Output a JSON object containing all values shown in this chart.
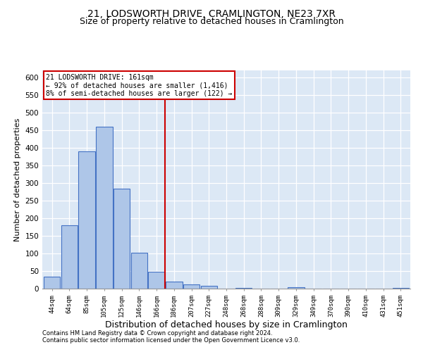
{
  "title1": "21, LODSWORTH DRIVE, CRAMLINGTON, NE23 7XR",
  "title2": "Size of property relative to detached houses in Cramlington",
  "xlabel": "Distribution of detached houses by size in Cramlington",
  "ylabel": "Number of detached properties",
  "footnote1": "Contains HM Land Registry data © Crown copyright and database right 2024.",
  "footnote2": "Contains public sector information licensed under the Open Government Licence v3.0.",
  "bar_labels": [
    "44sqm",
    "64sqm",
    "85sqm",
    "105sqm",
    "125sqm",
    "146sqm",
    "166sqm",
    "186sqm",
    "207sqm",
    "227sqm",
    "248sqm",
    "268sqm",
    "288sqm",
    "309sqm",
    "329sqm",
    "349sqm",
    "370sqm",
    "390sqm",
    "410sqm",
    "431sqm",
    "451sqm"
  ],
  "bar_values": [
    35,
    180,
    390,
    460,
    285,
    103,
    48,
    20,
    13,
    8,
    0,
    3,
    0,
    0,
    5,
    0,
    0,
    0,
    0,
    0,
    3
  ],
  "bar_color": "#aec6e8",
  "bar_edgecolor": "#4472c4",
  "bg_color": "#dce8f5",
  "grid_color": "#ffffff",
  "vline_x": 6.5,
  "vline_color": "#cc0000",
  "annotation_line1": "21 LODSWORTH DRIVE: 161sqm",
  "annotation_line2": "← 92% of detached houses are smaller (1,416)",
  "annotation_line3": "8% of semi-detached houses are larger (122) →",
  "annotation_box_color": "#cc0000",
  "annotation_box_bg": "#ffffff",
  "ylim": [
    0,
    620
  ],
  "yticks": [
    0,
    50,
    100,
    150,
    200,
    250,
    300,
    350,
    400,
    450,
    500,
    550,
    600
  ],
  "title1_fontsize": 10,
  "title2_fontsize": 9,
  "xlabel_fontsize": 9,
  "ylabel_fontsize": 8,
  "figwidth": 6.0,
  "figheight": 5.0,
  "dpi": 100
}
